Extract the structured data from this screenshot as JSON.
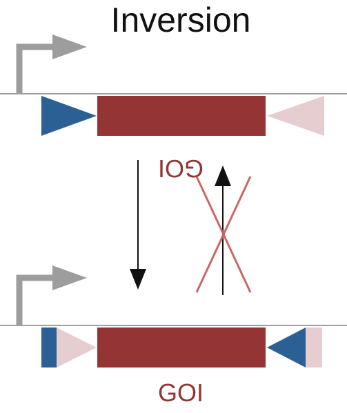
{
  "title": "Inversion",
  "gene_label": "GOI",
  "colors": {
    "title": "#111111",
    "dna_line": "#9e9e9e",
    "promoter": "#9d9d9d",
    "gene": "#943434",
    "gene_label": "#943434",
    "loxp_blue": "#2b6095",
    "loxp_pink": "#e5cdd0",
    "arrow": "#111111",
    "cross": "#c96767"
  }
}
